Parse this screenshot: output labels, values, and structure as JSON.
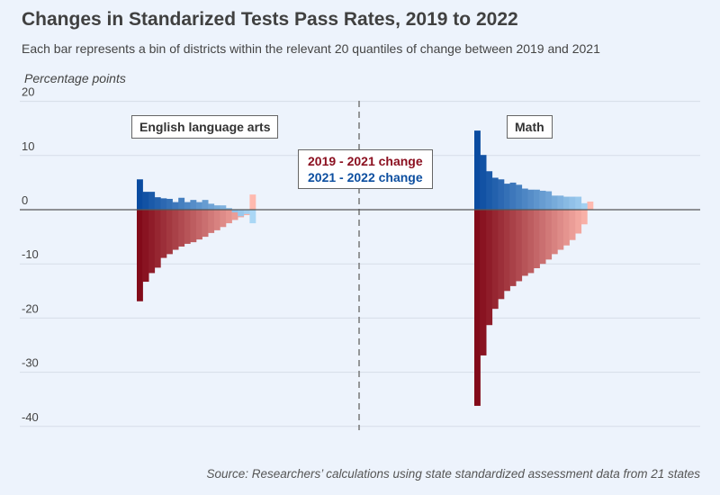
{
  "chart_data": {
    "type": "bar",
    "title": "Changes in Standarized Tests Pass Rates, 2019 to 2022",
    "subtitle": "Each bar represents a bin of districts within the relevant 20 quantiles of change between 2019 and 2021",
    "ylabel": "Percentage points",
    "xlabel": "",
    "ylim": [
      -40,
      20
    ],
    "yticks": [
      20,
      10,
      0,
      -10,
      -20,
      -30,
      -40
    ],
    "grid": true,
    "legend_placement": "center",
    "source": "Source: Researchers’ calculations using state standardized assessment data from 21 states",
    "legend": [
      {
        "name": "2019 - 2021 change",
        "color": "#8b1020"
      },
      {
        "name": "2021 - 2022 change",
        "color": "#0d4fa0"
      }
    ],
    "panels": [
      {
        "name": "English language arts",
        "series": [
          {
            "name": "2019 - 2021 change",
            "values": [
              -16.9,
              -13.3,
              -11.7,
              -10.7,
              -8.9,
              -8.2,
              -7.4,
              -6.8,
              -6.3,
              -6.0,
              -5.5,
              -5.0,
              -4.3,
              -3.8,
              -3.2,
              -2.5,
              -1.9,
              -1.4,
              -1.0,
              2.8
            ]
          },
          {
            "name": "2021 - 2022 change",
            "values": [
              5.6,
              3.3,
              3.3,
              2.3,
              2.1,
              2.0,
              1.4,
              2.2,
              1.4,
              1.8,
              1.4,
              1.8,
              1.1,
              0.8,
              0.8,
              0.3,
              -0.5,
              -1.2,
              -0.8,
              -2.5
            ]
          }
        ]
      },
      {
        "name": "Math",
        "series": [
          {
            "name": "2019 - 2021 change",
            "values": [
              -36.2,
              -26.9,
              -21.3,
              -18.3,
              -16.5,
              -15.0,
              -14.1,
              -13.2,
              -12.2,
              -11.7,
              -10.8,
              -10.0,
              -9.2,
              -8.2,
              -7.4,
              -6.6,
              -5.6,
              -4.4,
              -2.7,
              1.5
            ]
          },
          {
            "name": "2021 - 2022 change",
            "values": [
              14.6,
              10.1,
              7.1,
              5.9,
              5.6,
              4.8,
              5.0,
              4.6,
              3.9,
              3.7,
              3.7,
              3.5,
              3.4,
              2.6,
              2.6,
              2.4,
              2.4,
              2.4,
              1.2,
              0
            ]
          }
        ]
      }
    ]
  }
}
